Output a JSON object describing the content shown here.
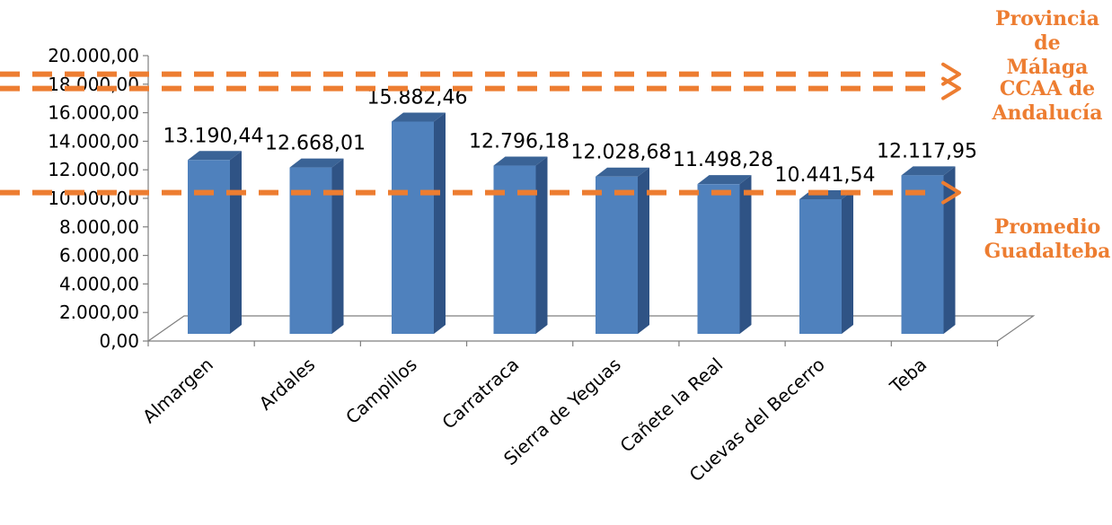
{
  "chart_data": {
    "type": "bar",
    "categories": [
      "Almargen",
      "Ardales",
      "Campillos",
      "Carratraca",
      "Sierra de Yeguas",
      "Cañete la Real",
      "Cuevas del Becerro",
      "Teba"
    ],
    "values": [
      13190.44,
      12668.01,
      15882.46,
      12796.18,
      12028.68,
      11498.28,
      10441.54,
      12117.95
    ],
    "data_labels": [
      "13.190,44",
      "12.668,01",
      "15.882,46",
      "12.796,18",
      "12.028,68",
      "11.498,28",
      "10.441,54",
      "12.117,95"
    ],
    "yticks": [
      0,
      2000,
      4000,
      6000,
      8000,
      10000,
      12000,
      14000,
      16000,
      18000,
      20000
    ],
    "ytick_labels": [
      "0,00",
      "2.000,00",
      "4.000,00",
      "6.000,00",
      "8.000,00",
      "10.000,00",
      "12.000,00",
      "14.000,00",
      "16.000,00",
      "18.000,00",
      "20.000,00"
    ],
    "ylim": [
      0,
      20000
    ],
    "bar_color": "#4F81BD",
    "reference_lines": [
      {
        "label_lines": [
          "Provincia",
          "de",
          "Málaga"
        ],
        "value": 18700,
        "color": "#ED7D31"
      },
      {
        "label_lines": [
          "CCAA de",
          "Andalucía"
        ],
        "value": 17700,
        "color": "#ED7D31"
      },
      {
        "label_lines": [
          "Promedio",
          "Guadalteba"
        ],
        "value": 10400,
        "color": "#ED7D31"
      }
    ],
    "legend": "none",
    "grid": false,
    "style": "3d-column"
  }
}
